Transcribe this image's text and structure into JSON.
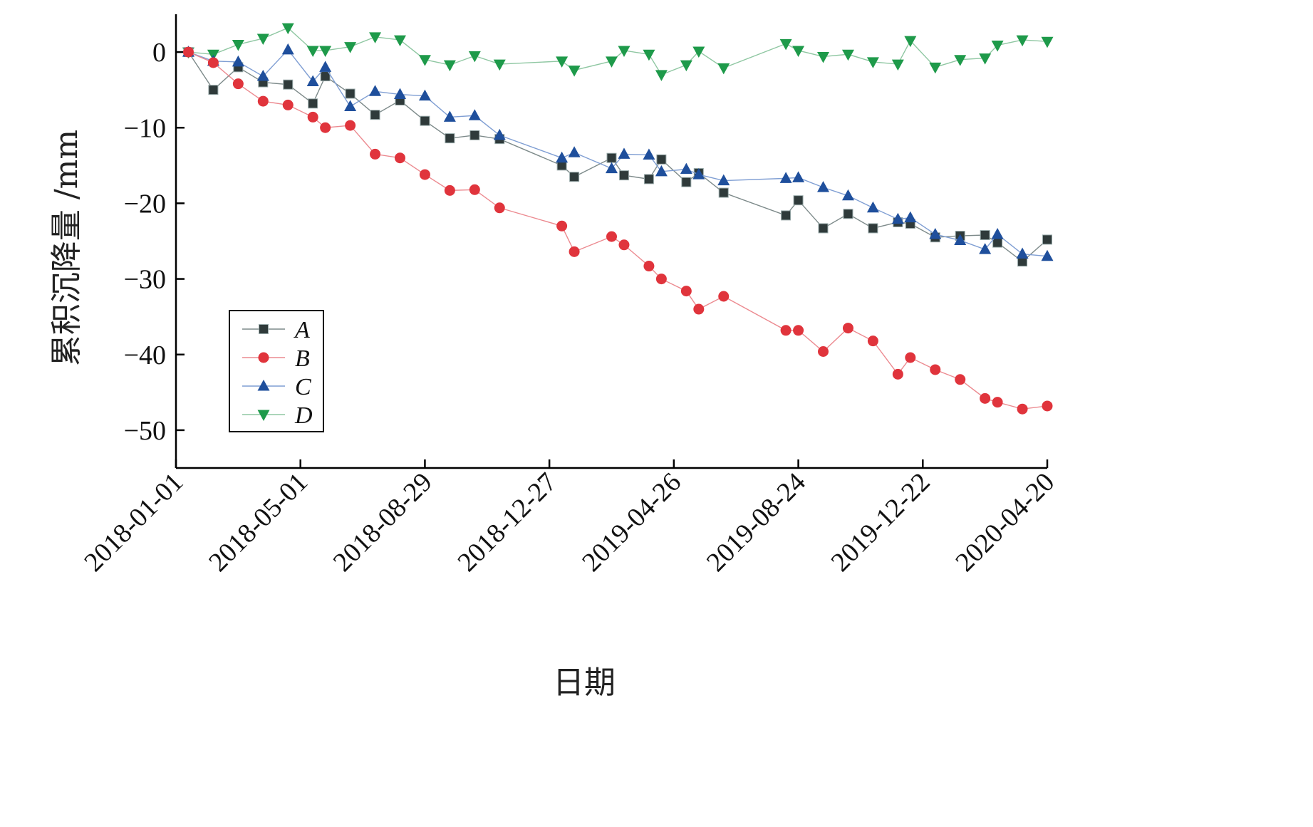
{
  "chart_data": {
    "type": "line",
    "xlabel": "日期",
    "ylabel": "累积沉降量 /mm",
    "ylim": [
      -55,
      5
    ],
    "y_ticks": [
      0,
      -10,
      -20,
      -30,
      -40,
      -50
    ],
    "y_tick_labels": [
      "0",
      "−10",
      "−20",
      "−30",
      "−40",
      "−50"
    ],
    "x_tick_labels": [
      "2018-01-01",
      "2018-05-01",
      "2018-08-29",
      "2018-12-27",
      "2019-04-26",
      "2019-08-24",
      "2019-12-22",
      "2020-04-20"
    ],
    "xlim": [
      "2018-01-01",
      "2020-04-20"
    ],
    "grid": false,
    "legend_position": "bottom-left",
    "x": [
      "2018-01-13",
      "2018-02-06",
      "2018-03-02",
      "2018-03-26",
      "2018-04-19",
      "2018-05-13",
      "2018-05-25",
      "2018-06-18",
      "2018-07-12",
      "2018-08-05",
      "2018-08-29",
      "2018-09-22",
      "2018-10-16",
      "2018-11-09",
      "2019-01-08",
      "2019-01-20",
      "2019-02-25",
      "2019-03-09",
      "2019-04-02",
      "2019-04-14",
      "2019-05-08",
      "2019-05-20",
      "2019-06-13",
      "2019-08-12",
      "2019-08-24",
      "2019-09-17",
      "2019-10-11",
      "2019-11-04",
      "2019-11-28",
      "2019-12-10",
      "2020-01-03",
      "2020-01-27",
      "2020-02-20",
      "2020-03-03",
      "2020-03-27",
      "2020-04-20"
    ],
    "series": [
      {
        "name": "A",
        "color": "#2f3a3a",
        "marker": "square",
        "values": [
          0,
          -5,
          -2,
          -4,
          -4.3,
          -6.8,
          -3.2,
          -5.5,
          -8.3,
          -6.4,
          -9.1,
          -11.4,
          -11,
          -11.5,
          -15,
          -16.5,
          -14,
          -16.3,
          -16.8,
          -14.2,
          -17.2,
          -16,
          -18.6,
          -21.6,
          -19.6,
          -23.3,
          -21.4,
          -23.3,
          -22.5,
          -22.7,
          -24.5,
          -24.3,
          -24.2,
          -25.2,
          -27.7,
          -24.8
        ]
      },
      {
        "name": "B",
        "color": "#e0343c",
        "marker": "circle",
        "values": [
          0,
          -1.4,
          -4.2,
          -6.5,
          -7,
          -8.6,
          -10,
          -9.7,
          -13.5,
          -14,
          -16.2,
          -18.3,
          -18.2,
          -20.6,
          -23,
          -26.4,
          -24.4,
          -25.5,
          -28.3,
          -30,
          -31.6,
          -34,
          -32.3,
          -36.8,
          -36.8,
          -39.6,
          -36.5,
          -38.2,
          -42.6,
          -40.4,
          -42,
          -43.3,
          -45.8,
          -46.3,
          -47.2,
          -46.8
        ]
      },
      {
        "name": "C",
        "color": "#1f4f9c",
        "marker": "triangle-up",
        "values": [
          0,
          -1.2,
          -1.3,
          -3.2,
          0.3,
          -3.9,
          -2,
          -7.2,
          -5.2,
          -5.6,
          -5.8,
          -8.6,
          -8.4,
          -11,
          -14,
          -13.3,
          -15.4,
          -13.5,
          -13.6,
          -15.8,
          -15.5,
          -16.2,
          -17,
          -16.7,
          -16.6,
          -17.9,
          -19,
          -20.6,
          -22.1,
          -21.9,
          -24.1,
          -24.9,
          -26.1,
          -24.1,
          -26.7,
          -27
        ]
      },
      {
        "name": "D",
        "color": "#1e9a4a",
        "marker": "triangle-down",
        "values": [
          0,
          -0.3,
          1,
          1.8,
          3.2,
          0.2,
          0.2,
          0.7,
          2,
          1.6,
          -1,
          -1.7,
          -0.5,
          -1.6,
          -1.2,
          -2.4,
          -1.2,
          0.2,
          -0.3,
          -3,
          -1.7,
          0.1,
          -2.1,
          1.1,
          0.2,
          -0.6,
          -0.3,
          -1.3,
          -1.6,
          1.5,
          -2,
          -1,
          -0.8,
          0.9,
          1.6,
          1.4
        ]
      }
    ]
  }
}
